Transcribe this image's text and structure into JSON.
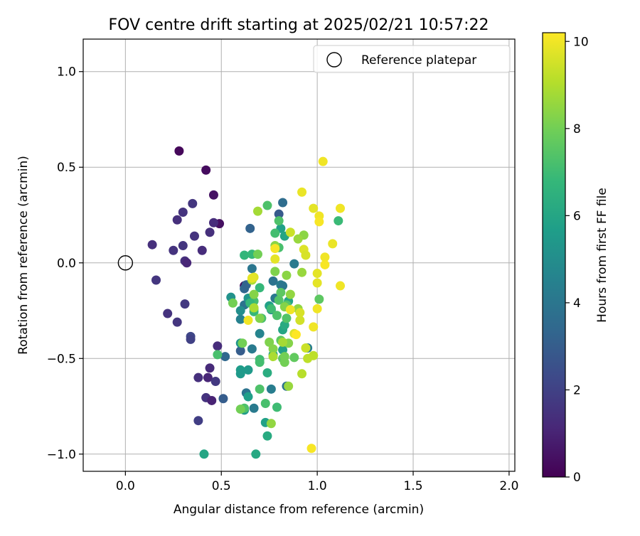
{
  "chart_data": {
    "type": "scatter",
    "title": "FOV centre drift starting at 2025/02/21 10:57:22",
    "xlabel": "Angular distance from reference (arcmin)",
    "ylabel": "Rotation from reference (arcmin)",
    "xlim": [
      -0.22,
      2.03
    ],
    "ylim": [
      -1.09,
      1.17
    ],
    "xticks": [
      0.0,
      0.5,
      1.0,
      1.5,
      2.0
    ],
    "xtick_labels": [
      "0.0",
      "0.5",
      "1.0",
      "1.5",
      "2.0"
    ],
    "yticks": [
      -1.0,
      -0.5,
      0.0,
      0.5,
      1.0
    ],
    "ytick_labels": [
      "−1.0",
      "−0.5",
      "0.0",
      "0.5",
      "1.0"
    ],
    "grid": true,
    "legend": {
      "position": "top-right",
      "entries": [
        "Reference platepar"
      ]
    },
    "reference_point": {
      "x": 0.0,
      "y": 0.0
    },
    "colorbar": {
      "label": "Hours from first FF file",
      "range": [
        0,
        10.2
      ],
      "ticks": [
        0,
        2,
        4,
        6,
        8,
        10
      ],
      "tick_labels": [
        "0",
        "2",
        "4",
        "6",
        "8",
        "10"
      ],
      "colormap": "viridis"
    },
    "points": [
      {
        "x": 0.28,
        "y": 0.585,
        "hours": 0.2
      },
      {
        "x": 0.42,
        "y": 0.485,
        "hours": 0.3
      },
      {
        "x": 0.46,
        "y": 0.355,
        "hours": 0.5
      },
      {
        "x": 0.49,
        "y": 0.205,
        "hours": 0.4
      },
      {
        "x": 0.62,
        "y": -0.12,
        "hours": 0.5
      },
      {
        "x": 0.3,
        "y": 0.265,
        "hours": 1.5
      },
      {
        "x": 0.35,
        "y": 0.31,
        "hours": 1.6
      },
      {
        "x": 0.27,
        "y": 0.225,
        "hours": 1.4
      },
      {
        "x": 0.46,
        "y": 0.21,
        "hours": 1.3
      },
      {
        "x": 0.44,
        "y": 0.16,
        "hours": 1.4
      },
      {
        "x": 0.36,
        "y": 0.14,
        "hours": 1.5
      },
      {
        "x": 0.14,
        "y": 0.095,
        "hours": 1.4
      },
      {
        "x": 0.3,
        "y": 0.09,
        "hours": 1.6
      },
      {
        "x": 0.25,
        "y": 0.065,
        "hours": 1.5
      },
      {
        "x": 0.4,
        "y": 0.065,
        "hours": 1.3
      },
      {
        "x": 0.31,
        "y": 0.01,
        "hours": 1.4
      },
      {
        "x": 0.32,
        "y": 0.0,
        "hours": 1.1
      },
      {
        "x": 0.16,
        "y": -0.09,
        "hours": 1.6
      },
      {
        "x": 0.31,
        "y": -0.215,
        "hours": 1.7
      },
      {
        "x": 0.22,
        "y": -0.265,
        "hours": 1.5
      },
      {
        "x": 0.27,
        "y": -0.31,
        "hours": 1.6
      },
      {
        "x": 0.34,
        "y": -0.385,
        "hours": 2.2
      },
      {
        "x": 0.34,
        "y": -0.4,
        "hours": 2.0
      },
      {
        "x": 0.48,
        "y": -0.435,
        "hours": 1.3
      },
      {
        "x": 0.44,
        "y": -0.55,
        "hours": 1.2
      },
      {
        "x": 0.38,
        "y": -0.6,
        "hours": 1.4
      },
      {
        "x": 0.43,
        "y": -0.6,
        "hours": 1.1
      },
      {
        "x": 0.47,
        "y": -0.62,
        "hours": 1.7
      },
      {
        "x": 0.42,
        "y": -0.705,
        "hours": 1.5
      },
      {
        "x": 0.45,
        "y": -0.72,
        "hours": 1.0
      },
      {
        "x": 0.38,
        "y": -0.825,
        "hours": 1.9
      },
      {
        "x": 0.51,
        "y": -0.71,
        "hours": 3.0
      },
      {
        "x": 0.52,
        "y": -0.49,
        "hours": 3.4
      },
      {
        "x": 0.6,
        "y": -0.46,
        "hours": 3.0
      },
      {
        "x": 0.65,
        "y": 0.18,
        "hours": 3.2
      },
      {
        "x": 0.82,
        "y": 0.315,
        "hours": 3.6
      },
      {
        "x": 0.8,
        "y": 0.255,
        "hours": 2.9
      },
      {
        "x": 0.66,
        "y": -0.03,
        "hours": 4.0
      },
      {
        "x": 0.62,
        "y": -0.135,
        "hours": 3.4
      },
      {
        "x": 0.63,
        "y": -0.115,
        "hours": 3.3
      },
      {
        "x": 0.62,
        "y": -0.22,
        "hours": 3.9
      },
      {
        "x": 0.63,
        "y": -0.68,
        "hours": 3.9
      },
      {
        "x": 0.67,
        "y": -0.76,
        "hours": 4.2
      },
      {
        "x": 0.66,
        "y": -0.45,
        "hours": 4.2
      },
      {
        "x": 0.76,
        "y": -0.66,
        "hours": 4.3
      },
      {
        "x": 0.84,
        "y": -0.645,
        "hours": 3.9
      },
      {
        "x": 0.77,
        "y": -0.095,
        "hours": 3.9
      },
      {
        "x": 0.78,
        "y": -0.185,
        "hours": 4.1
      },
      {
        "x": 0.81,
        "y": -0.115,
        "hours": 4.3
      },
      {
        "x": 0.82,
        "y": -0.12,
        "hours": 4.0
      },
      {
        "x": 0.88,
        "y": -0.005,
        "hours": 4.2
      },
      {
        "x": 0.95,
        "y": -0.445,
        "hours": 4.3
      },
      {
        "x": 0.6,
        "y": -0.295,
        "hours": 4.5
      },
      {
        "x": 0.7,
        "y": -0.37,
        "hours": 4.6
      },
      {
        "x": 0.76,
        "y": -0.245,
        "hours": 4.7
      },
      {
        "x": 0.55,
        "y": -0.18,
        "hours": 5.2
      },
      {
        "x": 0.6,
        "y": -0.25,
        "hours": 5.0
      },
      {
        "x": 0.64,
        "y": -0.185,
        "hours": 5.4
      },
      {
        "x": 0.6,
        "y": -0.42,
        "hours": 5.3
      },
      {
        "x": 0.6,
        "y": -0.56,
        "hours": 5.6
      },
      {
        "x": 0.6,
        "y": -0.58,
        "hours": 5.5
      },
      {
        "x": 0.64,
        "y": -0.56,
        "hours": 5.5
      },
      {
        "x": 0.64,
        "y": -0.7,
        "hours": 5.7
      },
      {
        "x": 0.62,
        "y": -0.77,
        "hours": 5.5
      },
      {
        "x": 0.73,
        "y": -0.835,
        "hours": 5.8
      },
      {
        "x": 0.74,
        "y": -0.905,
        "hours": 6.2
      },
      {
        "x": 0.41,
        "y": -1.0,
        "hours": 6.0
      },
      {
        "x": 0.68,
        "y": -1.0,
        "hours": 6.1
      },
      {
        "x": 0.74,
        "y": -0.575,
        "hours": 6.3
      },
      {
        "x": 0.77,
        "y": -0.48,
        "hours": 6.0
      },
      {
        "x": 0.75,
        "y": -0.225,
        "hours": 5.8
      },
      {
        "x": 0.81,
        "y": 0.18,
        "hours": 5.8
      },
      {
        "x": 0.83,
        "y": 0.14,
        "hours": 6.0
      },
      {
        "x": 0.85,
        "y": -0.2,
        "hours": 6.0
      },
      {
        "x": 0.82,
        "y": -0.35,
        "hours": 6.0
      },
      {
        "x": 0.83,
        "y": -0.325,
        "hours": 6.2
      },
      {
        "x": 0.82,
        "y": -0.455,
        "hours": 5.8
      },
      {
        "x": 0.62,
        "y": 0.04,
        "hours": 6.7
      },
      {
        "x": 0.66,
        "y": 0.045,
        "hours": 6.8
      },
      {
        "x": 0.7,
        "y": -0.13,
        "hours": 6.8
      },
      {
        "x": 0.71,
        "y": -0.29,
        "hours": 7.2
      },
      {
        "x": 0.7,
        "y": -0.505,
        "hours": 7.0
      },
      {
        "x": 0.7,
        "y": -0.52,
        "hours": 7.1
      },
      {
        "x": 0.67,
        "y": -0.2,
        "hours": 7.1
      },
      {
        "x": 0.65,
        "y": -0.21,
        "hours": 6.8
      },
      {
        "x": 0.67,
        "y": -0.24,
        "hours": 6.8
      },
      {
        "x": 0.67,
        "y": -0.255,
        "hours": 6.8
      },
      {
        "x": 0.48,
        "y": -0.48,
        "hours": 7.2
      },
      {
        "x": 0.62,
        "y": -0.76,
        "hours": 7.3
      },
      {
        "x": 0.7,
        "y": -0.66,
        "hours": 7.3
      },
      {
        "x": 0.73,
        "y": -0.735,
        "hours": 7.2
      },
      {
        "x": 0.79,
        "y": -0.755,
        "hours": 7.0
      },
      {
        "x": 0.74,
        "y": 0.3,
        "hours": 7.3
      },
      {
        "x": 0.8,
        "y": 0.22,
        "hours": 7.3
      },
      {
        "x": 0.78,
        "y": 0.155,
        "hours": 7.1
      },
      {
        "x": 0.8,
        "y": 0.08,
        "hours": 7.2
      },
      {
        "x": 0.76,
        "y": -0.24,
        "hours": 7.0
      },
      {
        "x": 0.79,
        "y": -0.275,
        "hours": 7.3
      },
      {
        "x": 0.8,
        "y": -0.195,
        "hours": 7.4
      },
      {
        "x": 0.84,
        "y": -0.22,
        "hours": 7.4
      },
      {
        "x": 0.81,
        "y": -0.155,
        "hours": 7.6
      },
      {
        "x": 0.81,
        "y": -0.405,
        "hours": 7.6
      },
      {
        "x": 0.82,
        "y": -0.5,
        "hours": 7.6
      },
      {
        "x": 0.84,
        "y": -0.29,
        "hours": 7.4
      },
      {
        "x": 0.88,
        "y": -0.495,
        "hours": 7.7
      },
      {
        "x": 1.01,
        "y": -0.19,
        "hours": 7.6
      },
      {
        "x": 1.11,
        "y": 0.22,
        "hours": 6.9
      },
      {
        "x": 0.56,
        "y": -0.21,
        "hours": 8.0
      },
      {
        "x": 0.69,
        "y": 0.045,
        "hours": 8.0
      },
      {
        "x": 0.67,
        "y": -0.165,
        "hours": 8.3
      },
      {
        "x": 0.7,
        "y": -0.29,
        "hours": 8.2
      },
      {
        "x": 0.6,
        "y": -0.765,
        "hours": 8.0
      },
      {
        "x": 0.61,
        "y": -0.42,
        "hours": 8.0
      },
      {
        "x": 0.75,
        "y": -0.415,
        "hours": 8.2
      },
      {
        "x": 0.77,
        "y": -0.45,
        "hours": 8.3
      },
      {
        "x": 0.83,
        "y": -0.49,
        "hours": 8.0
      },
      {
        "x": 0.83,
        "y": -0.52,
        "hours": 8.0
      },
      {
        "x": 0.85,
        "y": -0.42,
        "hours": 8.3
      },
      {
        "x": 0.85,
        "y": -0.645,
        "hours": 8.6
      },
      {
        "x": 0.76,
        "y": -0.84,
        "hours": 8.5
      },
      {
        "x": 0.78,
        "y": 0.09,
        "hours": 8.4
      },
      {
        "x": 0.78,
        "y": -0.045,
        "hours": 8.2
      },
      {
        "x": 0.84,
        "y": -0.065,
        "hours": 8.4
      },
      {
        "x": 0.86,
        "y": -0.165,
        "hours": 8.5
      },
      {
        "x": 0.83,
        "y": -0.23,
        "hours": 8.3
      },
      {
        "x": 0.9,
        "y": -0.24,
        "hours": 8.5
      },
      {
        "x": 0.92,
        "y": -0.05,
        "hours": 8.6
      },
      {
        "x": 0.93,
        "y": 0.145,
        "hours": 8.4
      },
      {
        "x": 0.9,
        "y": 0.125,
        "hours": 8.6
      },
      {
        "x": 0.69,
        "y": 0.27,
        "hours": 8.8
      },
      {
        "x": 0.66,
        "y": -0.09,
        "hours": 8.9
      },
      {
        "x": 0.67,
        "y": -0.235,
        "hours": 8.9
      },
      {
        "x": 0.77,
        "y": -0.49,
        "hours": 8.9
      },
      {
        "x": 0.82,
        "y": -0.415,
        "hours": 8.8
      },
      {
        "x": 0.92,
        "y": -0.58,
        "hours": 9.1
      },
      {
        "x": 0.95,
        "y": -0.5,
        "hours": 9.2
      },
      {
        "x": 0.98,
        "y": -0.485,
        "hours": 9.2
      },
      {
        "x": 0.94,
        "y": -0.445,
        "hours": 9.4
      },
      {
        "x": 0.88,
        "y": -0.37,
        "hours": 9.7
      },
      {
        "x": 0.91,
        "y": -0.3,
        "hours": 9.5
      },
      {
        "x": 0.91,
        "y": -0.26,
        "hours": 9.6
      },
      {
        "x": 0.98,
        "y": -0.335,
        "hours": 10.0
      },
      {
        "x": 1.0,
        "y": -0.24,
        "hours": 10.0
      },
      {
        "x": 0.86,
        "y": -0.245,
        "hours": 10.0
      },
      {
        "x": 0.64,
        "y": -0.3,
        "hours": 10.0
      },
      {
        "x": 0.86,
        "y": 0.16,
        "hours": 9.4
      },
      {
        "x": 0.92,
        "y": 0.37,
        "hours": 9.9
      },
      {
        "x": 0.98,
        "y": 0.285,
        "hours": 9.8
      },
      {
        "x": 1.03,
        "y": 0.53,
        "hours": 10.0
      },
      {
        "x": 1.01,
        "y": 0.245,
        "hours": 10.0
      },
      {
        "x": 1.01,
        "y": 0.215,
        "hours": 10.1
      },
      {
        "x": 1.12,
        "y": 0.285,
        "hours": 10.0
      },
      {
        "x": 1.08,
        "y": 0.1,
        "hours": 9.9
      },
      {
        "x": 0.93,
        "y": 0.07,
        "hours": 9.7
      },
      {
        "x": 0.94,
        "y": 0.04,
        "hours": 9.6
      },
      {
        "x": 1.04,
        "y": 0.03,
        "hours": 10.0
      },
      {
        "x": 1.04,
        "y": -0.01,
        "hours": 10.1
      },
      {
        "x": 1.0,
        "y": -0.055,
        "hours": 9.8
      },
      {
        "x": 1.0,
        "y": -0.105,
        "hours": 9.8
      },
      {
        "x": 1.12,
        "y": -0.12,
        "hours": 10.0
      },
      {
        "x": 0.78,
        "y": 0.02,
        "hours": 9.8
      },
      {
        "x": 0.67,
        "y": -0.075,
        "hours": 9.7
      },
      {
        "x": 0.66,
        "y": -0.08,
        "hours": 9.8
      },
      {
        "x": 0.78,
        "y": 0.075,
        "hours": 10.1
      },
      {
        "x": 0.97,
        "y": -0.97,
        "hours": 10.1
      },
      {
        "x": 0.89,
        "y": -0.375,
        "hours": 10.2
      }
    ]
  }
}
